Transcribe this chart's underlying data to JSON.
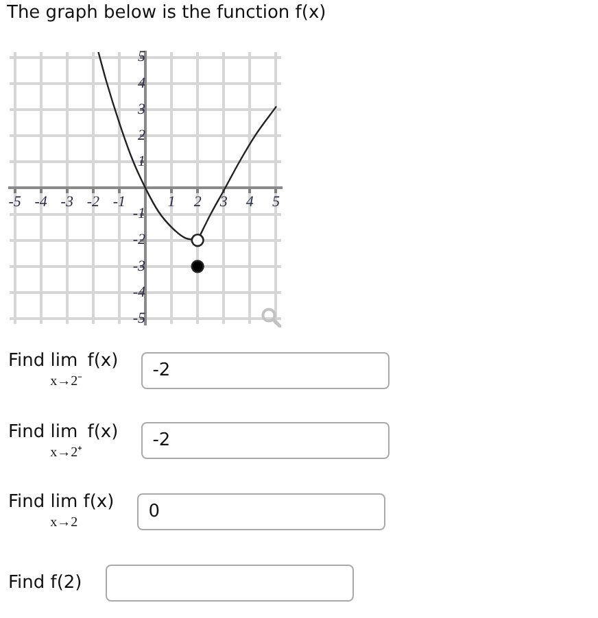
{
  "chart_data": {
    "type": "line",
    "title": "The graph below is the function f(x)",
    "series": [
      {
        "color": "#222222",
        "x": [
          -1.8,
          -1.5,
          -1,
          -0.5,
          0,
          0.5,
          1,
          1.5,
          2
        ],
        "values": [
          5.2,
          4.1,
          2.5,
          1.1,
          0,
          -0.9,
          -1.5,
          -1.9,
          -2
        ]
      },
      {
        "color": "#222222",
        "x": [
          2,
          2.5,
          3,
          3.6,
          4.2,
          5
        ],
        "values": [
          -2,
          -1,
          -0.1,
          1,
          2,
          3.1
        ]
      },
      {
        "type": "scatter",
        "marker": "circle",
        "color": "#ffffff",
        "x": [
          2
        ],
        "values": [
          -2
        ]
      },
      {
        "type": "scatter",
        "marker": "circle",
        "color": "#000000",
        "x": [
          2
        ],
        "values": [
          -3
        ]
      }
    ],
    "xlim": [
      -5.2,
      5.2
    ],
    "ylim": [
      -5.2,
      5.2
    ],
    "xticks": [
      -5,
      -4,
      -3,
      -2,
      -1,
      1,
      2,
      3,
      4,
      5
    ],
    "yticks": [
      -5,
      -4,
      -3,
      -2,
      -1,
      1,
      2,
      3,
      4,
      5
    ],
    "grid": true,
    "annotations": [
      "Find lim$_{x→2⁻}$ f(x)",
      "-2",
      "Find lim$_{x→2⁺}$ f(x)",
      "-2",
      "Find lim$_{x→2}$ f(x)",
      "0",
      "Find f(2)"
    ]
  }
}
